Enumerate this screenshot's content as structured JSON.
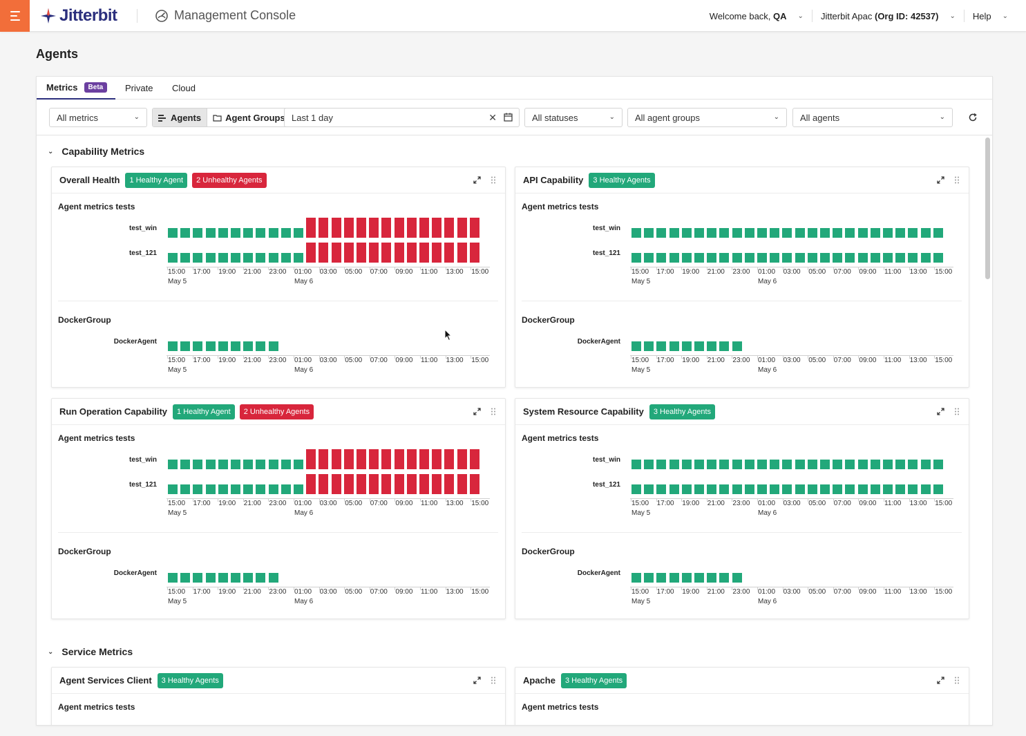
{
  "header": {
    "app_name": "Jitterbit",
    "console_title": "Management Console",
    "welcome_prefix": "Welcome back, ",
    "welcome_user": "QA",
    "org_prefix": "Jitterbit Apac ",
    "org_id": "(Org ID: 42537)",
    "help_label": "Help"
  },
  "page": {
    "title": "Agents"
  },
  "tabs": [
    {
      "label": "Metrics",
      "badge": "Beta",
      "active": true
    },
    {
      "label": "Private",
      "active": false
    },
    {
      "label": "Cloud",
      "active": false
    }
  ],
  "filters": {
    "metrics_select": "All metrics",
    "view_toggle": [
      "Agents",
      "Agent Groups"
    ],
    "date_range": "Last 1 day",
    "status_select": "All statuses",
    "groups_select": "All agent groups",
    "agents_select": "All agents"
  },
  "sections": {
    "capability": "Capability Metrics",
    "service": "Service Metrics"
  },
  "axis": {
    "ticks": [
      "15:00",
      "17:00",
      "19:00",
      "21:00",
      "23:00",
      "01:00",
      "03:00",
      "05:00",
      "07:00",
      "09:00",
      "11:00",
      "13:00",
      "15:00"
    ],
    "date_start": "May 5",
    "date_mid": "May 6"
  },
  "group_labels": {
    "metrics_tests": "Agent metrics tests",
    "docker_group": "DockerGroup"
  },
  "agents": {
    "test_win": "test_win",
    "test_121": "test_121",
    "docker": "DockerAgent"
  },
  "colors": {
    "healthy": "#22a87a",
    "unhealthy": "#d8263c",
    "accent": "#f26e3a",
    "brand": "#2b2f7d"
  },
  "cards": [
    {
      "title": "Overall Health",
      "badges": [
        {
          "text": "1 Healthy Agent",
          "type": "green"
        },
        {
          "text": "2 Unhealthy Agents",
          "type": "red"
        }
      ],
      "rows": {
        "test_win": "mixed",
        "test_121": "mixed",
        "docker": "short"
      }
    },
    {
      "title": "API Capability",
      "badges": [
        {
          "text": "3 Healthy Agents",
          "type": "green"
        }
      ],
      "rows": {
        "test_win": "healthy",
        "test_121": "healthy",
        "docker": "short"
      }
    },
    {
      "title": "Run Operation Capability",
      "badges": [
        {
          "text": "1 Healthy Agent",
          "type": "green"
        },
        {
          "text": "2 Unhealthy Agents",
          "type": "red"
        }
      ],
      "rows": {
        "test_win": "mixed",
        "test_121": "mixed",
        "docker": "short"
      }
    },
    {
      "title": "System Resource Capability",
      "badges": [
        {
          "text": "3 Healthy Agents",
          "type": "green"
        }
      ],
      "rows": {
        "test_win": "healthy",
        "test_121": "healthy",
        "docker": "short"
      }
    },
    {
      "title": "Agent Services Client",
      "badges": [
        {
          "text": "3 Healthy Agents",
          "type": "green"
        }
      ]
    },
    {
      "title": "Apache",
      "badges": [
        {
          "text": "3 Healthy Agents",
          "type": "green"
        }
      ]
    }
  ]
}
